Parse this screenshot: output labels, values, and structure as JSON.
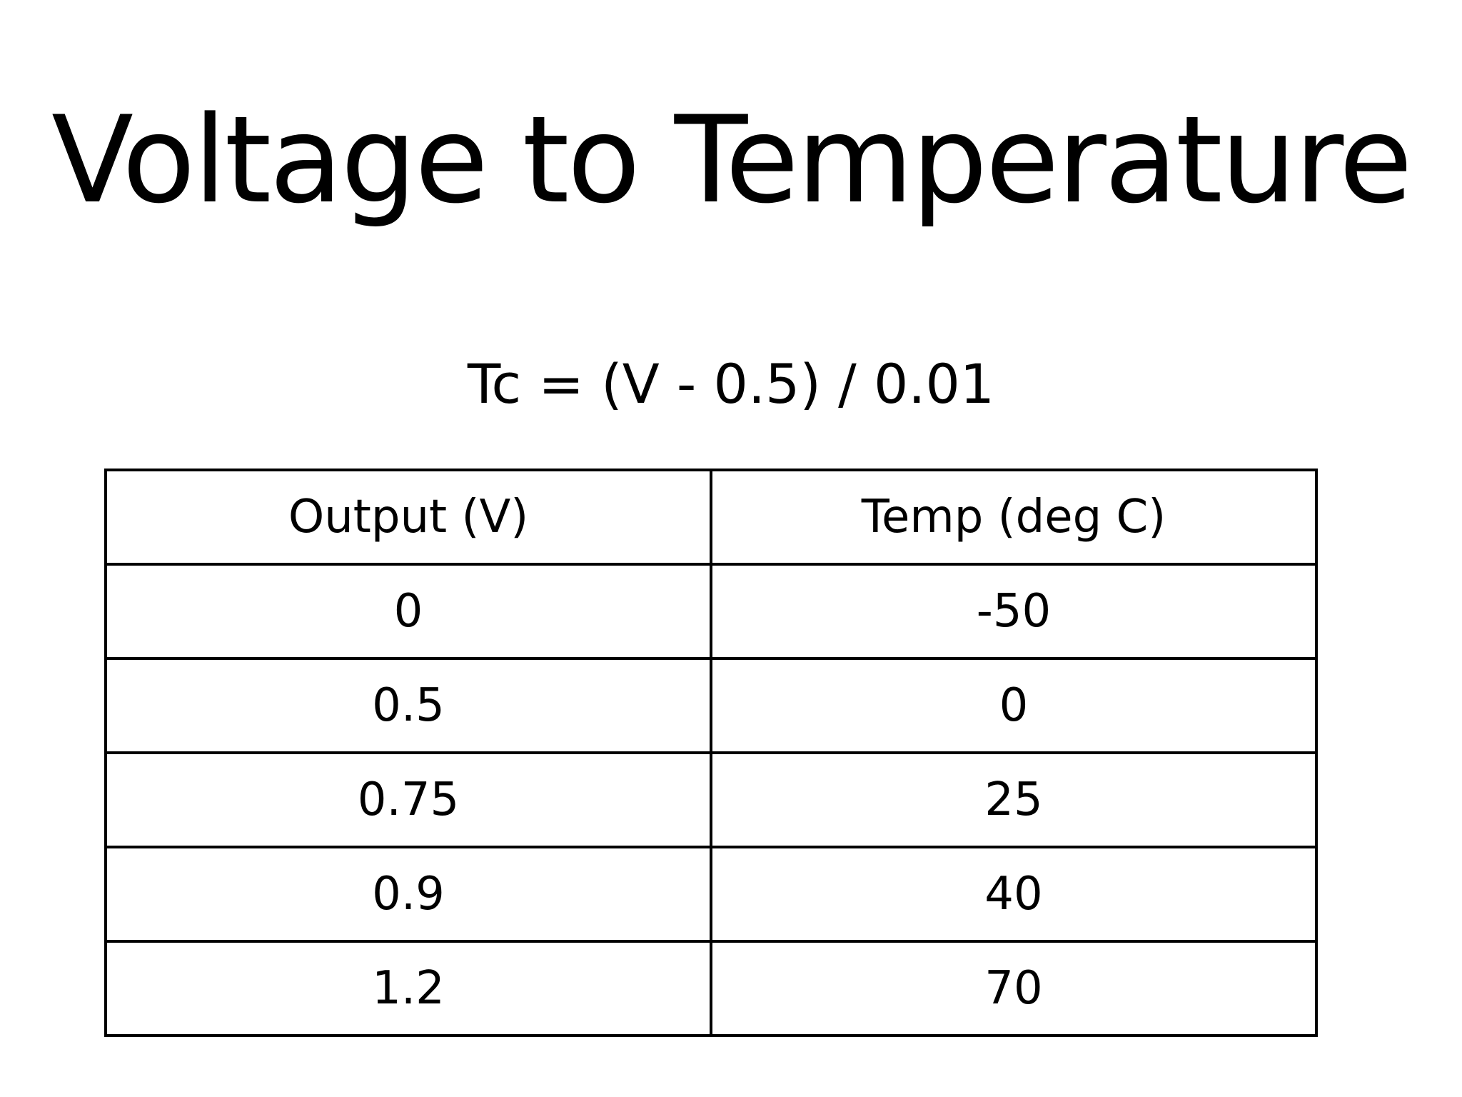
{
  "slide": {
    "title": "Voltage to Temperature",
    "formula": "Tc = (V - 0.5) / 0.01"
  },
  "table": {
    "headers": [
      "Output (V)",
      "Temp (deg C)"
    ],
    "rows": [
      [
        "0",
        "-50"
      ],
      [
        "0.5",
        "0"
      ],
      [
        "0.75",
        "25"
      ],
      [
        "0.9",
        "40"
      ],
      [
        "1.2",
        "70"
      ]
    ]
  }
}
